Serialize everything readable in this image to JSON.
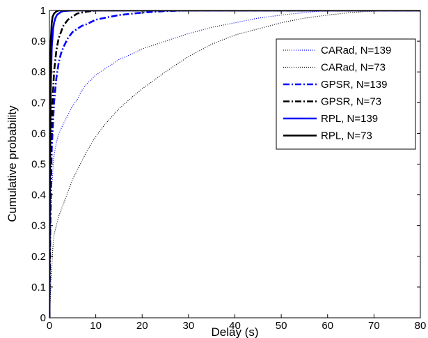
{
  "chart_data": {
    "type": "line",
    "title": "",
    "xlabel": "Delay (s)",
    "ylabel": "Cumulative probability",
    "xlim": [
      0,
      80
    ],
    "ylim": [
      0,
      1
    ],
    "xticks": [
      "0",
      "10",
      "20",
      "30",
      "40",
      "50",
      "60",
      "70",
      "80"
    ],
    "yticks": [
      "0",
      "0.1",
      "0.2",
      "0.3",
      "0.4",
      "0.5",
      "0.6",
      "0.7",
      "0.8",
      "0.9",
      "1"
    ],
    "grid": false,
    "legend_position": "top-right",
    "series": [
      {
        "name": "CARad, N=139",
        "color": "#0000ff",
        "style": "dotted",
        "x": [
          0,
          0.2,
          0.5,
          1,
          1.5,
          2,
          3,
          4,
          5,
          6,
          7,
          8,
          10,
          12,
          15,
          18,
          20,
          25,
          30,
          35,
          40,
          45,
          50,
          55,
          60
        ],
        "y": [
          0,
          0.25,
          0.43,
          0.53,
          0.57,
          0.6,
          0.63,
          0.66,
          0.69,
          0.71,
          0.74,
          0.76,
          0.79,
          0.81,
          0.84,
          0.86,
          0.875,
          0.9,
          0.925,
          0.945,
          0.96,
          0.975,
          0.985,
          0.993,
          1.0
        ]
      },
      {
        "name": "CARad, N=73",
        "color": "#000000",
        "style": "dotted",
        "x": [
          0,
          0.3,
          0.7,
          1,
          1.5,
          2,
          3,
          4,
          5,
          6,
          8,
          10,
          12,
          15,
          18,
          20,
          25,
          30,
          35,
          40,
          45,
          50,
          55,
          60,
          65,
          70,
          73
        ],
        "y": [
          0,
          0.1,
          0.22,
          0.27,
          0.3,
          0.33,
          0.37,
          0.41,
          0.45,
          0.48,
          0.54,
          0.59,
          0.63,
          0.68,
          0.72,
          0.745,
          0.8,
          0.85,
          0.89,
          0.92,
          0.94,
          0.96,
          0.975,
          0.985,
          0.993,
          0.998,
          1.0
        ]
      },
      {
        "name": "GPSR, N=139",
        "color": "#0000ff",
        "style": "dashdot",
        "x": [
          0,
          0.2,
          0.5,
          1,
          1.5,
          2,
          2.5,
          3,
          4,
          5,
          6,
          7,
          8,
          10,
          15,
          20,
          25,
          30
        ],
        "y": [
          0,
          0.3,
          0.55,
          0.7,
          0.78,
          0.83,
          0.86,
          0.88,
          0.91,
          0.93,
          0.94,
          0.95,
          0.955,
          0.97,
          0.985,
          0.993,
          0.998,
          1.0
        ]
      },
      {
        "name": "GPSR, N=73",
        "color": "#000000",
        "style": "dashdot",
        "x": [
          0,
          0.2,
          0.5,
          1,
          1.5,
          2,
          3,
          4,
          5,
          6,
          8,
          10
        ],
        "y": [
          0,
          0.4,
          0.65,
          0.8,
          0.87,
          0.91,
          0.95,
          0.97,
          0.98,
          0.99,
          0.996,
          1.0
        ]
      },
      {
        "name": "RPL, N=139",
        "color": "#0000ff",
        "style": "solid",
        "x": [
          0,
          0.1,
          0.3,
          0.5,
          0.8,
          1.0,
          1.3,
          1.6,
          2,
          2.5,
          3,
          4,
          5,
          6
        ],
        "y": [
          0,
          0.4,
          0.75,
          0.88,
          0.94,
          0.96,
          0.975,
          0.985,
          0.99,
          0.995,
          0.998,
          0.999,
          1.0,
          1.0
        ]
      },
      {
        "name": "RPL, N=73",
        "color": "#000000",
        "style": "solid",
        "x": [
          0,
          0.1,
          0.2,
          0.3,
          0.5,
          0.7,
          1.0,
          1.5,
          2,
          3
        ],
        "y": [
          0,
          0.55,
          0.8,
          0.9,
          0.96,
          0.98,
          0.99,
          0.997,
          1.0,
          1.0
        ]
      }
    ]
  }
}
